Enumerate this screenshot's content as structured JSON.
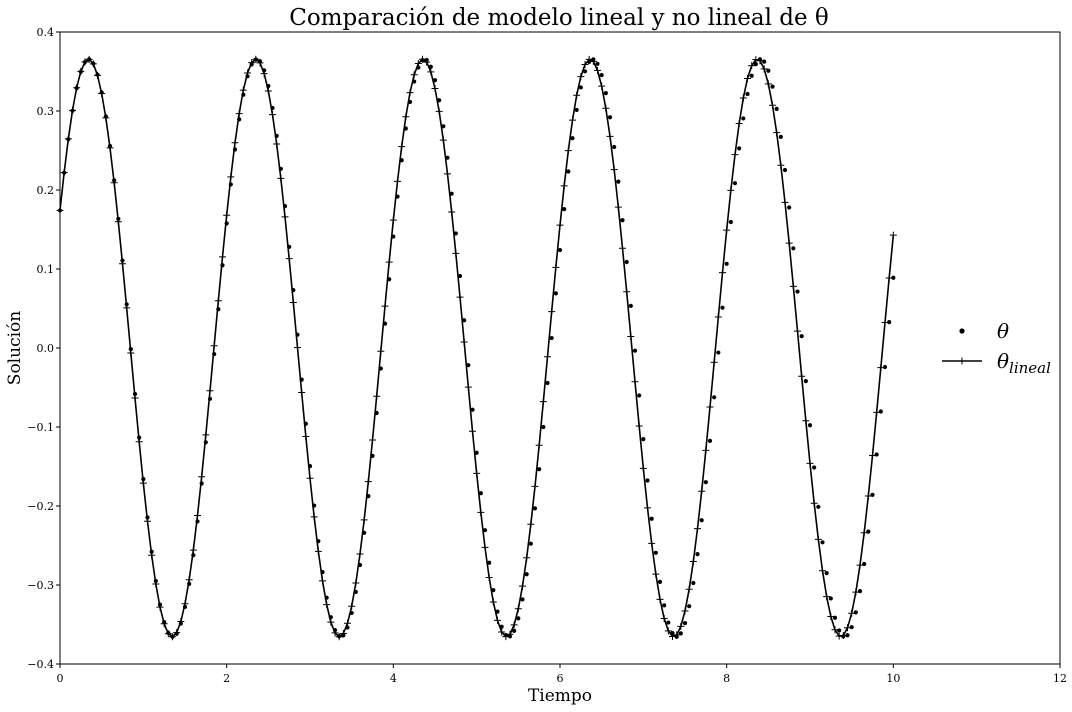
{
  "chart_data": {
    "type": "line",
    "title": "Comparación de modelo lineal y no lineal de θ",
    "xlabel": "Tiempo",
    "ylabel": "Solución",
    "xlim": [
      0,
      12
    ],
    "ylim": [
      -0.4,
      0.4
    ],
    "xticks": [
      0,
      2,
      4,
      6,
      8,
      10,
      12
    ],
    "xtick_labels": [
      "0",
      "2",
      "4",
      "6",
      "8",
      "10",
      "12"
    ],
    "yticks": [
      -0.4,
      -0.3,
      -0.2,
      -0.1,
      0.0,
      0.1,
      0.2,
      0.3,
      0.4
    ],
    "ytick_labels": [
      "−0.4",
      "−0.3",
      "−0.2",
      "−0.1",
      "0.0",
      "0.1",
      "0.2",
      "0.3",
      "0.4"
    ],
    "grid": false,
    "legend": {
      "placement": "center-right"
    },
    "series": [
      {
        "name": "θ",
        "style": "points",
        "marker": "dot",
        "color": "#000000",
        "model": {
          "equation": "θ(t) = 0.3655 · sin(3.1165 · t + 0.4966)",
          "t_start": 0,
          "t_end": 10,
          "samples": 201
        }
      },
      {
        "name": "θ_lineal",
        "name_base": "θ",
        "name_sub": "lineal",
        "style": "line",
        "marker": "plus",
        "color": "#000000",
        "model": {
          "equation": "θ(t) = 0.3655 · sin(3.1321 · t + 0.4966)",
          "t_start": 0,
          "t_end": 10,
          "samples": 201
        }
      }
    ]
  }
}
